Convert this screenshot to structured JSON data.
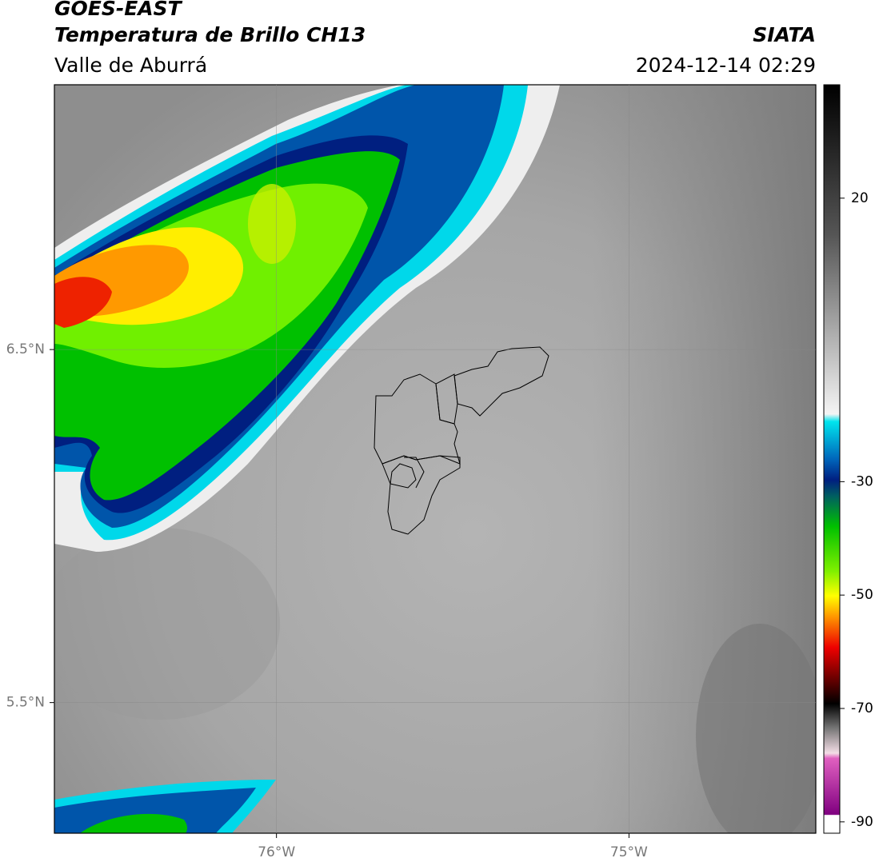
{
  "header": {
    "satellite": "GOES-EAST",
    "product": "Temperatura de Brillo CH13",
    "region": "Valle de Aburrá",
    "source": "SIATA",
    "datetime": "2024-12-14 02:29"
  },
  "map": {
    "xlim": [
      -76.63,
      -74.47
    ],
    "ylim": [
      5.13,
      7.25
    ],
    "xticks": [
      {
        "value": -76,
        "label": "76°W"
      },
      {
        "value": -75,
        "label": "75°W"
      }
    ],
    "yticks": [
      {
        "value": 6.5,
        "label": "6.5°N"
      },
      {
        "value": 5.5,
        "label": "5.5°N"
      }
    ],
    "grid": true
  },
  "colorbar": {
    "lim": [
      -92,
      40
    ],
    "ticks": [
      20,
      -30,
      -50,
      -70,
      -90
    ]
  }
}
